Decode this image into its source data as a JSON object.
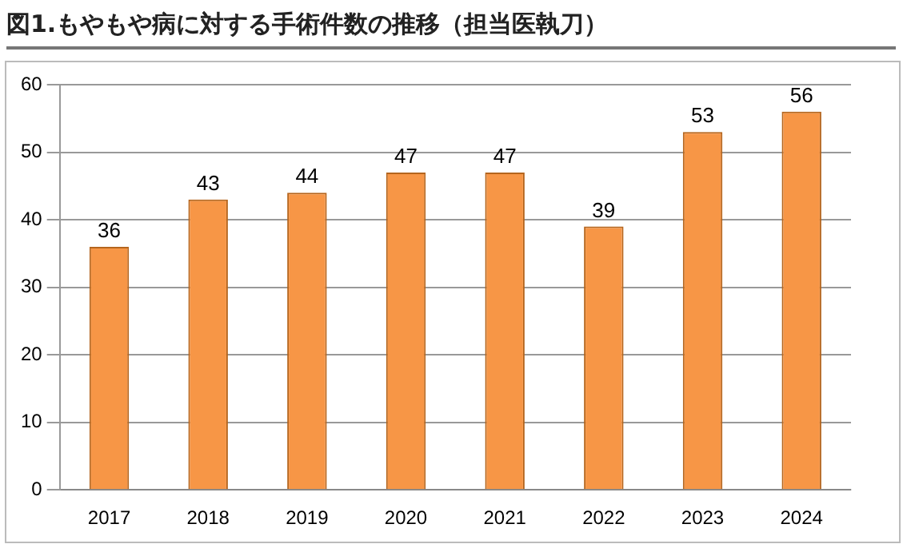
{
  "chart_data": {
    "type": "bar",
    "title": "図1.もやもや病に対する手術件数の推移（担当医執刀）",
    "categories": [
      "2017",
      "2018",
      "2019",
      "2020",
      "2021",
      "2022",
      "2023",
      "2024"
    ],
    "values": [
      36,
      43,
      44,
      47,
      47,
      39,
      53,
      56
    ],
    "color": "#f79646",
    "ylim": [
      0,
      60
    ],
    "yticks": [
      0,
      10,
      20,
      30,
      40,
      50,
      60
    ],
    "grid": "y",
    "data_labels": true
  }
}
